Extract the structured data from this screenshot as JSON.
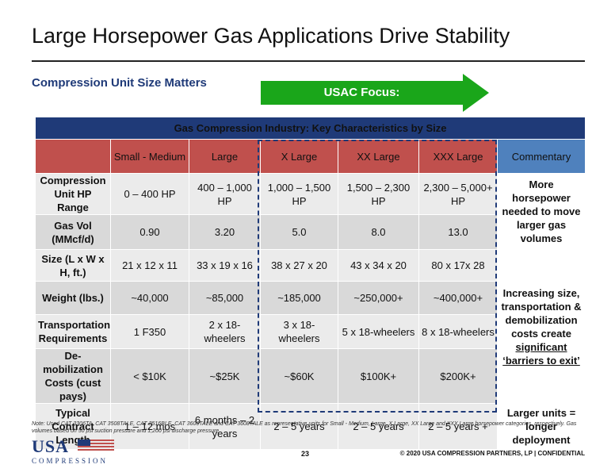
{
  "title": "Large Horsepower Gas Applications Drive Stability",
  "subtitle": "Compression Unit Size Matters",
  "focus_label": "USAC Focus:",
  "table": {
    "header": "Gas Compression Industry: Key Characteristics by Size",
    "columns": [
      "Small - Medium",
      "Large",
      "X Large",
      "XX Large",
      "XXX Large"
    ],
    "commentary_header": "Commentary",
    "rows": [
      {
        "label": "Compression Unit HP Range",
        "values": [
          "0 – 400 HP",
          "400 – 1,000 HP",
          "1,000 – 1,500 HP",
          "1,500 – 2,300 HP",
          "2,300 – 5,000+ HP"
        ]
      },
      {
        "label": "Gas Vol (MMcf/d)",
        "values": [
          "0.90",
          "3.20",
          "5.0",
          "8.0",
          "13.0"
        ]
      },
      {
        "label": "Size (L x W x H, ft.)",
        "values": [
          "21 x 12 x 11",
          "33 x 19 x 16",
          "38 x 27 x 20",
          "43 x 34 x 20",
          "80 x 17x 28"
        ]
      },
      {
        "label": "Weight (lbs.)",
        "values": [
          "~40,000",
          "~85,000",
          "~185,000",
          "~250,000+",
          "~400,000+"
        ]
      },
      {
        "label": "Transportation Requirements",
        "values": [
          "1 F350",
          "2 x 18-wheelers",
          "3 x 18-wheelers",
          "5 x 18-wheelers",
          "8 x 18-wheelers"
        ]
      },
      {
        "label": "De-mobilization Costs (cust pays)",
        "values": [
          "< $10K",
          "~$25K",
          "~$60K",
          "$100K+",
          "$200K+"
        ]
      },
      {
        "label": "Typical Contract Length",
        "values": [
          "1 – 12 mos",
          "6 months – 2 years",
          "2 – 5 years",
          "2 – 5 years",
          "2 – 5 years +"
        ]
      }
    ],
    "commentary": {
      "c1": "More horsepower needed to move larger gas volumes",
      "c2_pre": "Increasing size, transportation & demobilization costs create",
      "c2_emph": "significant ‘barriers to exit’",
      "c3": "Larger units = longer deployment"
    }
  },
  "note": "Note: Used CAT 3306TA, CAT 3508TALE, CAT 3516BLE, CAT 3606TALE and CAT 3608TALE as representative units for Small - Medium, Large, X Large, XX Large and XXX Large horsepower categories, respectively. Gas volumes based on 50 psi suction pressure and 1,200 psi discharge pressure.",
  "logo": {
    "top": "USA",
    "bottom": "COMPRESSION"
  },
  "page_number": "23",
  "copyright": "© 2020 USA COMPRESSION PARTNERS, LP   |  CONFIDENTIAL",
  "colors": {
    "navy": "#1f3a78",
    "red": "#c0504d",
    "blue": "#4f81bd",
    "green": "#1aa61a"
  }
}
